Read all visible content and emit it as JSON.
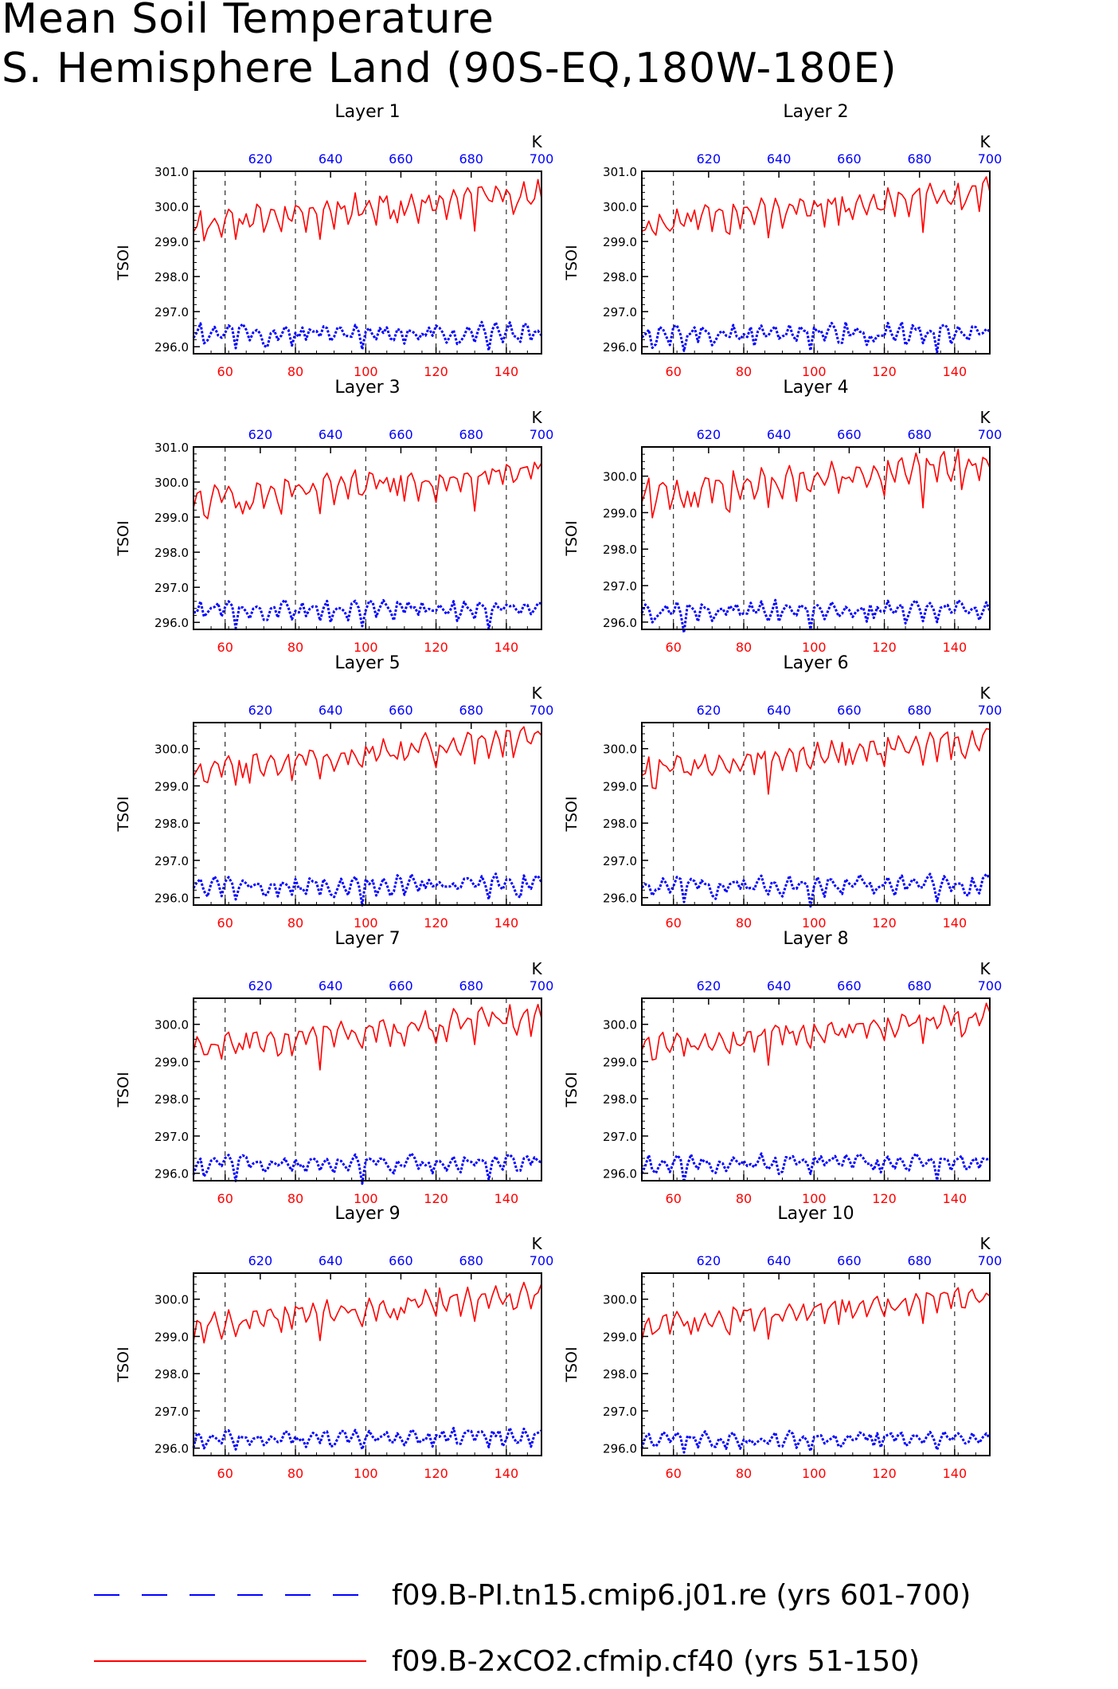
{
  "title": {
    "line1": "Mean Soil Temperature",
    "line2": "S. Hemisphere Land (90S-EQ,180W-180E)"
  },
  "colors": {
    "series_2xco2": "#ff0000",
    "series_pi": "#0000ff",
    "frame": "#000000"
  },
  "legend": {
    "entries": [
      {
        "label": "f09.B-PI.tn15.cmip6.j01.re (yrs 601-700)",
        "color": "#0000ff",
        "style": "dashed"
      },
      {
        "label": "f09.B-2xCO2.cfmip.cf40 (yrs 51-150)",
        "color": "#ff0000",
        "style": "solid"
      }
    ]
  },
  "chart_data": [
    {
      "type": "line",
      "title": "Layer 1",
      "ylabel": "TSOI",
      "top_axis_unit": "K",
      "x_bottom": {
        "range": [
          51,
          150
        ],
        "ticks": [
          60,
          80,
          100,
          120,
          140
        ]
      },
      "x_top": {
        "range": [
          601,
          700
        ],
        "ticks": [
          620,
          640,
          660,
          680,
          700
        ]
      },
      "ylim": [
        295.8,
        301.0
      ],
      "yticks": [
        296.0,
        297.0,
        298.0,
        299.0,
        300.0,
        301.0
      ],
      "vertical_dashed_grid_at": [
        60,
        80,
        100,
        120,
        140
      ],
      "series": [
        {
          "legend_index": 1,
          "axis": "bottom",
          "base": 299.95,
          "trend": 0.9,
          "amp": 0.55
        },
        {
          "legend_index": 0,
          "axis": "top",
          "base": 296.4,
          "trend": 0.05,
          "amp": 0.35
        }
      ]
    },
    {
      "type": "line",
      "title": "Layer 2",
      "ylabel": "TSOI",
      "top_axis_unit": "K",
      "x_bottom": {
        "range": [
          51,
          150
        ],
        "ticks": [
          60,
          80,
          100,
          120,
          140
        ]
      },
      "x_top": {
        "range": [
          601,
          700
        ],
        "ticks": [
          620,
          640,
          660,
          680,
          700
        ]
      },
      "ylim": [
        295.8,
        301.0
      ],
      "yticks": [
        296.0,
        297.0,
        298.0,
        299.0,
        300.0,
        301.0
      ],
      "vertical_dashed_grid_at": [
        60,
        80,
        100,
        120,
        140
      ],
      "series": [
        {
          "legend_index": 1,
          "axis": "bottom",
          "base": 299.95,
          "trend": 0.9,
          "amp": 0.55
        },
        {
          "legend_index": 0,
          "axis": "top",
          "base": 296.4,
          "trend": 0.05,
          "amp": 0.35
        }
      ]
    },
    {
      "type": "line",
      "title": "Layer 3",
      "ylabel": "TSOI",
      "top_axis_unit": "K",
      "x_bottom": {
        "range": [
          51,
          150
        ],
        "ticks": [
          60,
          80,
          100,
          120,
          140
        ]
      },
      "x_top": {
        "range": [
          601,
          700
        ],
        "ticks": [
          620,
          640,
          660,
          680,
          700
        ]
      },
      "ylim": [
        295.8,
        301.0
      ],
      "yticks": [
        296.0,
        297.0,
        298.0,
        299.0,
        300.0,
        301.0
      ],
      "vertical_dashed_grid_at": [
        60,
        80,
        100,
        120,
        140
      ],
      "series": [
        {
          "legend_index": 1,
          "axis": "bottom",
          "base": 299.9,
          "trend": 0.9,
          "amp": 0.55
        },
        {
          "legend_index": 0,
          "axis": "top",
          "base": 296.4,
          "trend": 0.05,
          "amp": 0.33
        }
      ]
    },
    {
      "type": "line",
      "title": "Layer 4",
      "ylabel": "TSOI",
      "top_axis_unit": "K",
      "x_bottom": {
        "range": [
          51,
          150
        ],
        "ticks": [
          60,
          80,
          100,
          120,
          140
        ]
      },
      "x_top": {
        "range": [
          601,
          700
        ],
        "ticks": [
          620,
          640,
          660,
          680,
          700
        ]
      },
      "ylim": [
        295.8,
        300.8
      ],
      "yticks": [
        296.0,
        297.0,
        298.0,
        299.0,
        300.0
      ],
      "vertical_dashed_grid_at": [
        60,
        80,
        100,
        120,
        140
      ],
      "series": [
        {
          "legend_index": 1,
          "axis": "bottom",
          "base": 299.9,
          "trend": 0.9,
          "amp": 0.55
        },
        {
          "legend_index": 0,
          "axis": "top",
          "base": 296.35,
          "trend": 0.05,
          "amp": 0.33
        }
      ]
    },
    {
      "type": "line",
      "title": "Layer 5",
      "ylabel": "TSOI",
      "top_axis_unit": "K",
      "x_bottom": {
        "range": [
          51,
          150
        ],
        "ticks": [
          60,
          80,
          100,
          120,
          140
        ]
      },
      "x_top": {
        "range": [
          601,
          700
        ],
        "ticks": [
          620,
          640,
          660,
          680,
          700
        ]
      },
      "ylim": [
        295.8,
        300.7
      ],
      "yticks": [
        296.0,
        297.0,
        298.0,
        299.0,
        300.0
      ],
      "vertical_dashed_grid_at": [
        60,
        80,
        100,
        120,
        140
      ],
      "series": [
        {
          "legend_index": 1,
          "axis": "bottom",
          "base": 299.85,
          "trend": 0.9,
          "amp": 0.5
        },
        {
          "legend_index": 0,
          "axis": "top",
          "base": 296.35,
          "trend": 0.05,
          "amp": 0.32
        }
      ]
    },
    {
      "type": "line",
      "title": "Layer 6",
      "ylabel": "TSOI",
      "top_axis_unit": "K",
      "x_bottom": {
        "range": [
          51,
          150
        ],
        "ticks": [
          60,
          80,
          100,
          120,
          140
        ]
      },
      "x_top": {
        "range": [
          601,
          700
        ],
        "ticks": [
          620,
          640,
          660,
          680,
          700
        ]
      },
      "ylim": [
        295.8,
        300.7
      ],
      "yticks": [
        296.0,
        297.0,
        298.0,
        299.0,
        300.0
      ],
      "vertical_dashed_grid_at": [
        60,
        80,
        100,
        120,
        140
      ],
      "series": [
        {
          "legend_index": 1,
          "axis": "bottom",
          "base": 299.85,
          "trend": 0.9,
          "amp": 0.5
        },
        {
          "legend_index": 0,
          "axis": "top",
          "base": 296.35,
          "trend": 0.05,
          "amp": 0.32
        }
      ]
    },
    {
      "type": "line",
      "title": "Layer 7",
      "ylabel": "TSOI",
      "top_axis_unit": "K",
      "x_bottom": {
        "range": [
          51,
          150
        ],
        "ticks": [
          60,
          80,
          100,
          120,
          140
        ]
      },
      "x_top": {
        "range": [
          601,
          700
        ],
        "ticks": [
          620,
          640,
          660,
          680,
          700
        ]
      },
      "ylim": [
        295.8,
        300.7
      ],
      "yticks": [
        296.0,
        297.0,
        298.0,
        299.0,
        300.0
      ],
      "vertical_dashed_grid_at": [
        60,
        80,
        100,
        120,
        140
      ],
      "series": [
        {
          "legend_index": 1,
          "axis": "bottom",
          "base": 299.8,
          "trend": 0.85,
          "amp": 0.5
        },
        {
          "legend_index": 0,
          "axis": "top",
          "base": 296.3,
          "trend": 0.05,
          "amp": 0.3
        }
      ]
    },
    {
      "type": "line",
      "title": "Layer 8",
      "ylabel": "TSOI",
      "top_axis_unit": "K",
      "x_bottom": {
        "range": [
          51,
          150
        ],
        "ticks": [
          60,
          80,
          100,
          120,
          140
        ]
      },
      "x_top": {
        "range": [
          601,
          700
        ],
        "ticks": [
          620,
          640,
          660,
          680,
          700
        ]
      },
      "ylim": [
        295.8,
        300.7
      ],
      "yticks": [
        296.0,
        297.0,
        298.0,
        299.0,
        300.0
      ],
      "vertical_dashed_grid_at": [
        60,
        80,
        100,
        120,
        140
      ],
      "series": [
        {
          "legend_index": 1,
          "axis": "bottom",
          "base": 299.8,
          "trend": 0.85,
          "amp": 0.45
        },
        {
          "legend_index": 0,
          "axis": "top",
          "base": 296.3,
          "trend": 0.05,
          "amp": 0.28
        }
      ]
    },
    {
      "type": "line",
      "title": "Layer 9",
      "ylabel": "TSOI",
      "top_axis_unit": "K",
      "x_bottom": {
        "range": [
          51,
          150
        ],
        "ticks": [
          60,
          80,
          100,
          120,
          140
        ]
      },
      "x_top": {
        "range": [
          601,
          700
        ],
        "ticks": [
          620,
          640,
          660,
          680,
          700
        ]
      },
      "ylim": [
        295.8,
        300.7
      ],
      "yticks": [
        296.0,
        297.0,
        298.0,
        299.0,
        300.0
      ],
      "vertical_dashed_grid_at": [
        60,
        80,
        100,
        120,
        140
      ],
      "series": [
        {
          "legend_index": 1,
          "axis": "bottom",
          "base": 299.75,
          "trend": 0.85,
          "amp": 0.45
        },
        {
          "legend_index": 0,
          "axis": "top",
          "base": 296.3,
          "trend": 0.05,
          "amp": 0.27
        }
      ]
    },
    {
      "type": "line",
      "title": "Layer 10",
      "ylabel": "TSOI",
      "top_axis_unit": "K",
      "x_bottom": {
        "range": [
          51,
          150
        ],
        "ticks": [
          60,
          80,
          100,
          120,
          140
        ]
      },
      "x_top": {
        "range": [
          601,
          700
        ],
        "ticks": [
          620,
          640,
          660,
          680,
          700
        ]
      },
      "ylim": [
        295.8,
        300.7
      ],
      "yticks": [
        296.0,
        297.0,
        298.0,
        299.0,
        300.0
      ],
      "vertical_dashed_grid_at": [
        60,
        80,
        100,
        120,
        140
      ],
      "series": [
        {
          "legend_index": 1,
          "axis": "bottom",
          "base": 299.7,
          "trend": 0.8,
          "amp": 0.42
        },
        {
          "legend_index": 0,
          "axis": "top",
          "base": 296.25,
          "trend": 0.05,
          "amp": 0.25
        }
      ]
    }
  ]
}
